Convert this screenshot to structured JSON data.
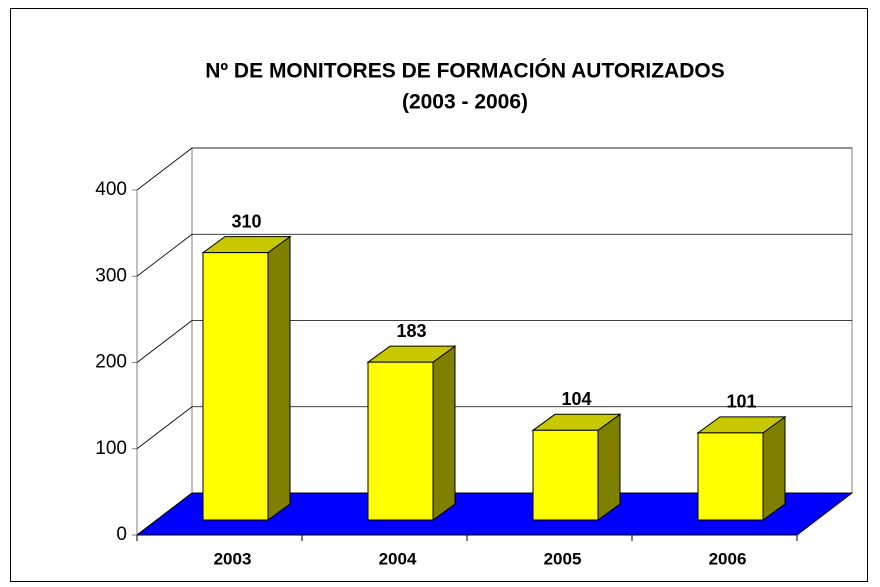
{
  "chart_data": {
    "type": "bar3d",
    "title": "Nº DE MONITORES DE FORMACIÓN AUTORIZADOS",
    "subtitle": "(2003 - 2006)",
    "categories": [
      "2003",
      "2004",
      "2005",
      "2006"
    ],
    "values": [
      310,
      183,
      104,
      101
    ],
    "color": "#ffff00",
    "side_color": "#808000",
    "top_color": "#c8c800",
    "floor_color": "#0000ff",
    "ylim": [
      0,
      400
    ],
    "yticks": [
      0,
      100,
      200,
      300,
      400
    ],
    "grid": true
  }
}
